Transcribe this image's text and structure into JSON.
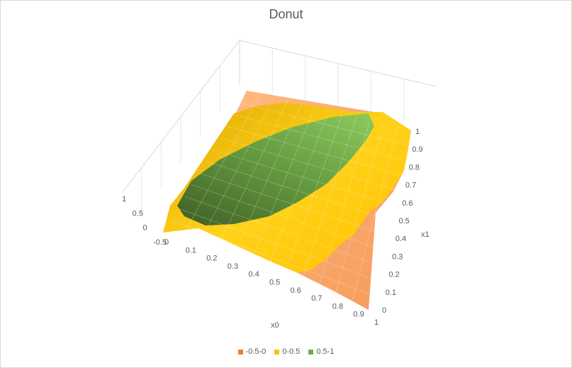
{
  "chart_data": {
    "type": "surface",
    "title": "Donut",
    "xlabel": "x0",
    "ylabel": "x1",
    "zlabel": "",
    "x_ticks": [
      "0",
      "0.1",
      "0.2",
      "0.3",
      "0.4",
      "0.5",
      "0.6",
      "0.7",
      "0.8",
      "0.9",
      "1"
    ],
    "y_ticks": [
      "0",
      "0.1",
      "0.2",
      "0.3",
      "0.4",
      "0.5",
      "0.6",
      "0.7",
      "0.8",
      "0.9",
      "1"
    ],
    "z_ticks": [
      "-0.5",
      "0",
      "0.5",
      "1"
    ],
    "zlim": [
      -0.5,
      1
    ],
    "legend": [
      {
        "label": "-0.5-0",
        "color": "#ED7D31"
      },
      {
        "label": "0-0.5",
        "color": "#FFC000"
      },
      {
        "label": "0.5-1",
        "color": "#70AD47"
      }
    ],
    "legend_position": "bottom"
  }
}
